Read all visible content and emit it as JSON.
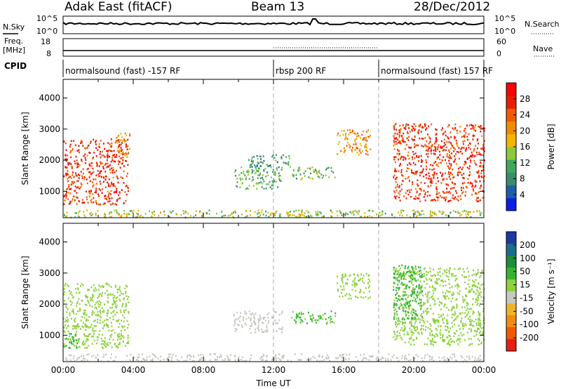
{
  "header": {
    "title": "Adak East (fitACF)",
    "beam": "Beam 13",
    "date": "28/Dec/2012"
  },
  "strip_labels": {
    "nsky": "N.Sky",
    "nsearch": "N.Search",
    "freq_line1": "Freq.",
    "freq_line2": "[MHz]",
    "nave": "Nave",
    "cpid": "CPID"
  },
  "strip_ticks": {
    "noise_left": [
      "10^5",
      "10^0"
    ],
    "noise_right": [
      "10^5",
      "10^0"
    ],
    "freq_left": [
      "18",
      "8"
    ],
    "nave_right": [
      "60",
      "0"
    ]
  },
  "cpid_segments": [
    {
      "label": "normalsound (fast) -157 RF",
      "start_h": 0,
      "end_h": 12
    },
    {
      "label": "rbsp 200 RF",
      "start_h": 12,
      "end_h": 18
    },
    {
      "label": "normalsound (fast) 157 RF",
      "start_h": 18,
      "end_h": 24
    }
  ],
  "colorbars": {
    "power": {
      "label": "Power [dB]",
      "ticks": [
        "4",
        "8",
        "12",
        "16",
        "20",
        "24",
        "28"
      ],
      "colors": [
        "#0a1fe6",
        "#1c5fa8",
        "#3a8c6e",
        "#3fa85a",
        "#8cc83c",
        "#f5b400",
        "#f08c00",
        "#f05a00",
        "#e61e00",
        "#ff0000"
      ]
    },
    "velocity": {
      "label": "Velocity [m s⁻¹]",
      "ticks": [
        "200",
        "100",
        "50",
        "15",
        "-15",
        "-50",
        "-100",
        "-200"
      ],
      "colors": [
        "#1a3aa0",
        "#1c6e8c",
        "#1e8c3c",
        "#32b432",
        "#8cd23c",
        "#c8c8c0",
        "#f0b428",
        "#f08c14",
        "#f05a00",
        "#e61e14"
      ]
    }
  },
  "chart_data": [
    {
      "type": "heatmap",
      "name": "power-panel",
      "xlabel": "",
      "ylabel": "Slant Range [km]",
      "xlim": [
        0,
        24
      ],
      "ylim": [
        150,
        4600
      ],
      "y_ticks": [
        1000,
        2000,
        3000,
        4000
      ],
      "grid": false,
      "regions": [
        {
          "t0": 0.0,
          "t1": 3.7,
          "r0": 600,
          "r1": 2700,
          "level": 26
        },
        {
          "t0": 3.0,
          "t1": 3.8,
          "r0": 2100,
          "r1": 2900,
          "level": 18
        },
        {
          "t0": 9.7,
          "t1": 12.5,
          "r0": 1100,
          "r1": 1800,
          "level": 10
        },
        {
          "t0": 10.5,
          "t1": 13.0,
          "r0": 1800,
          "r1": 2200,
          "level": 8
        },
        {
          "t0": 13.0,
          "t1": 15.5,
          "r0": 1400,
          "r1": 1800,
          "level": 12
        },
        {
          "t0": 15.6,
          "t1": 17.5,
          "r0": 2200,
          "r1": 3000,
          "level": 20
        },
        {
          "t0": 18.8,
          "t1": 24.0,
          "r0": 700,
          "r1": 3200,
          "level": 26
        },
        {
          "t0": 0.0,
          "t1": 24.0,
          "r0": 180,
          "r1": 420,
          "level": 14
        }
      ]
    },
    {
      "type": "heatmap",
      "name": "velocity-panel",
      "xlabel": "Time UT",
      "ylabel": "Slant Range [km]",
      "xlim": [
        0,
        24
      ],
      "ylim": [
        150,
        4600
      ],
      "y_ticks": [
        1000,
        2000,
        3000,
        4000
      ],
      "x_ticks": [
        "00:00",
        "04:00",
        "08:00",
        "12:00",
        "16:00",
        "20:00",
        "00:00"
      ],
      "x_tick_hours": [
        0,
        4,
        8,
        12,
        16,
        20,
        24
      ],
      "grid": false,
      "regions": [
        {
          "t0": 0.0,
          "t1": 3.7,
          "r0": 600,
          "r1": 2700,
          "level": 0
        },
        {
          "t0": 0.0,
          "t1": 0.8,
          "r0": 600,
          "r1": 1100,
          "level": 30
        },
        {
          "t0": 9.7,
          "t1": 12.5,
          "r0": 1100,
          "r1": 1800,
          "level": -40
        },
        {
          "t0": 13.0,
          "t1": 15.5,
          "r0": 1400,
          "r1": 1800,
          "level": 20
        },
        {
          "t0": 15.6,
          "t1": 17.5,
          "r0": 2200,
          "r1": 3000,
          "level": 0
        },
        {
          "t0": 18.8,
          "t1": 24.0,
          "r0": 700,
          "r1": 3200,
          "level": 0
        },
        {
          "t0": 18.8,
          "t1": 20.5,
          "r0": 1500,
          "r1": 3300,
          "level": 30
        },
        {
          "t0": 0.0,
          "t1": 24.0,
          "r0": 180,
          "r1": 420,
          "level": -30
        }
      ]
    }
  ]
}
